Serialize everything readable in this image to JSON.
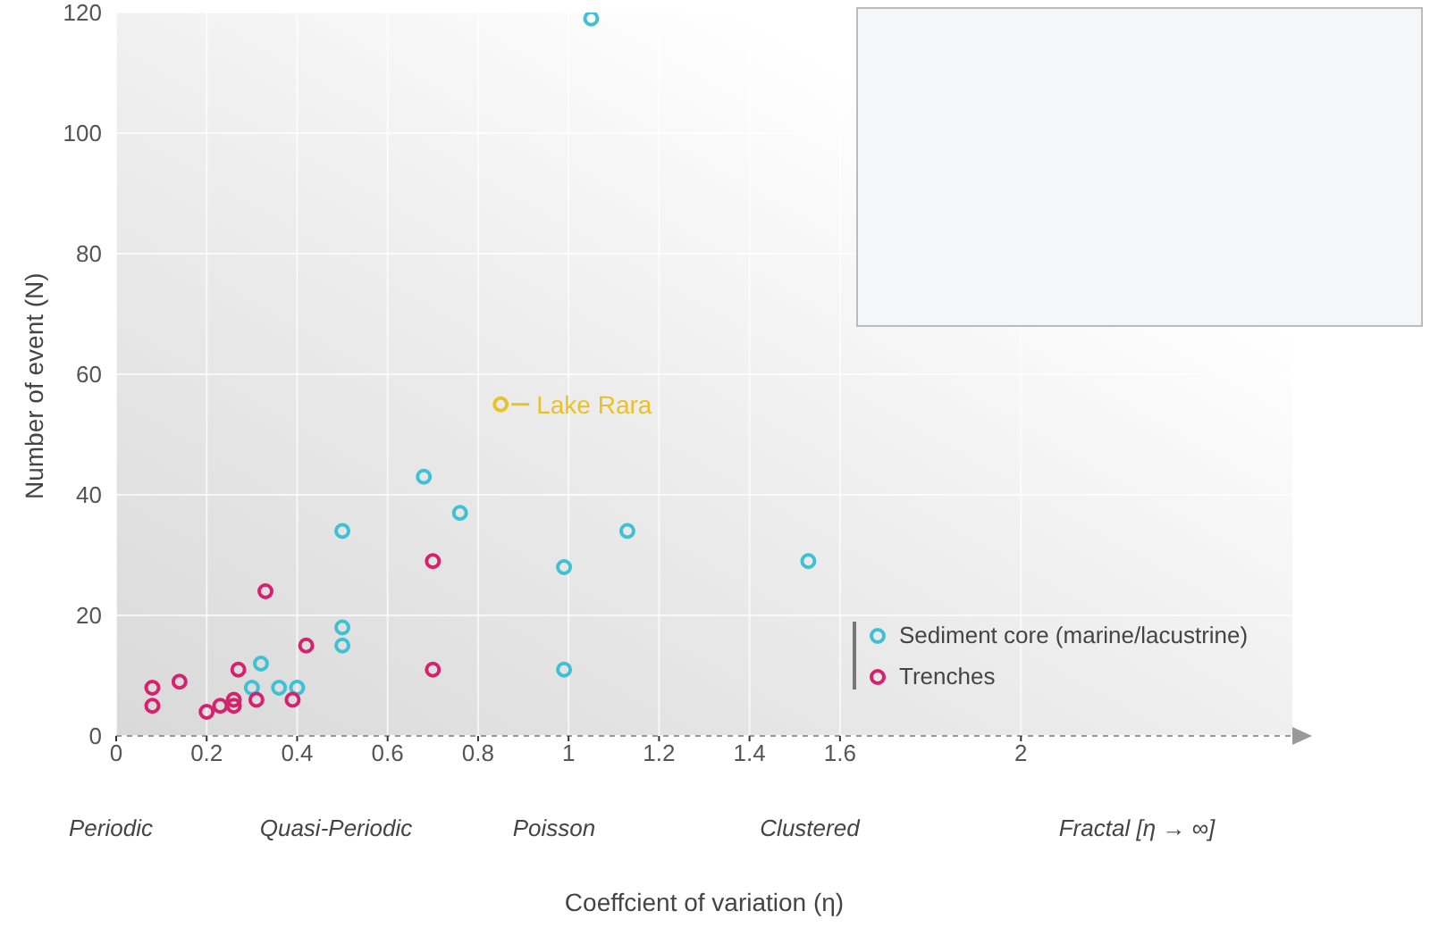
{
  "chart_data": {
    "type": "scatter",
    "xlabel": "Coeffcient of variation (η)",
    "ylabel": "Number of event (N)",
    "xlim": [
      0,
      2.6
    ],
    "xticks": [
      0,
      0.2,
      0.4,
      0.6,
      0.8,
      1,
      1.2,
      1.4,
      1.6,
      2
    ],
    "ylim": [
      0,
      120
    ],
    "yticks": [
      0,
      20,
      40,
      60,
      80,
      100,
      120
    ],
    "grid": true,
    "legend": "bottom right",
    "marker": "circle",
    "series": [
      {
        "name": "Sediment core (marine/lacustrine)",
        "color": "#3ec1d3",
        "x": [
          1.05,
          0.68,
          0.76,
          0.5,
          1.13,
          0.99,
          1.53,
          0.5,
          0.5,
          0.32,
          0.99,
          0.3,
          0.36,
          0.4
        ],
        "values": [
          119,
          43,
          37,
          34,
          34,
          28,
          29,
          18,
          15,
          12,
          11,
          8,
          8,
          8
        ]
      },
      {
        "name": "Trenches",
        "color": "#d6226e",
        "x": [
          0.08,
          0.08,
          0.14,
          0.2,
          0.23,
          0.26,
          0.26,
          0.27,
          0.31,
          0.33,
          0.39,
          0.42,
          0.7,
          0.7
        ],
        "values": [
          8,
          5,
          9,
          4,
          5,
          6,
          5,
          11,
          6,
          24,
          6,
          15,
          29,
          11
        ]
      },
      {
        "color": "#e8c22a",
        "x": [
          0.85
        ],
        "values": [
          55
        ]
      }
    ],
    "annotations": [
      "Periodic",
      "Quasi-Periodic",
      "Poisson",
      "Clustered",
      "Fractal [η → ∞]",
      {
        "text": "Lake Rara",
        "x": 0.85,
        "y": 55
      }
    ]
  }
}
